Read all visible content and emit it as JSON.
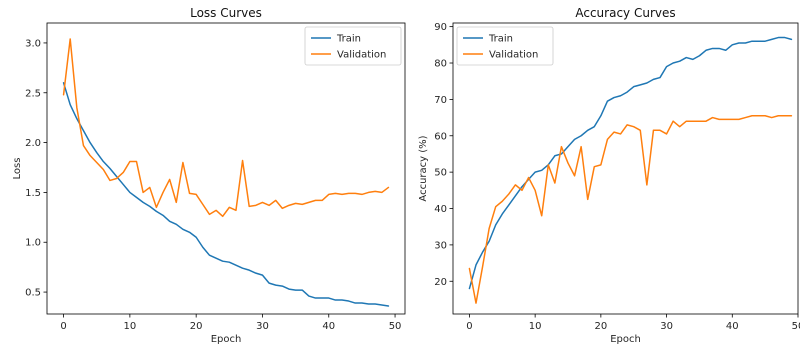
{
  "chart_data": [
    {
      "type": "line",
      "title": "Loss Curves",
      "xlabel": "Epoch",
      "ylabel": "Loss",
      "xlim": [
        -2.5,
        51.5
      ],
      "ylim": [
        0.28,
        3.2
      ],
      "xticks": [
        0,
        10,
        20,
        30,
        40,
        50
      ],
      "yticks": [
        0.5,
        1.0,
        1.5,
        2.0,
        2.5,
        3.0
      ],
      "xtick_labels": [
        "0",
        "10",
        "20",
        "30",
        "40",
        "50"
      ],
      "ytick_labels": [
        "0.5",
        "1.0",
        "1.5",
        "2.0",
        "2.5",
        "3.0"
      ],
      "legend": "upper right",
      "grid": false,
      "x": [
        0,
        1,
        2,
        3,
        4,
        5,
        6,
        7,
        8,
        9,
        10,
        11,
        12,
        13,
        14,
        15,
        16,
        17,
        18,
        19,
        20,
        21,
        22,
        23,
        24,
        25,
        26,
        27,
        28,
        29,
        30,
        31,
        32,
        33,
        34,
        35,
        36,
        37,
        38,
        39,
        40,
        41,
        42,
        43,
        44,
        45,
        46,
        47,
        48,
        49
      ],
      "series": [
        {
          "name": "Train",
          "color": "#1f77b4",
          "values": [
            2.6,
            2.38,
            2.24,
            2.12,
            2.0,
            1.9,
            1.81,
            1.74,
            1.66,
            1.58,
            1.5,
            1.45,
            1.4,
            1.36,
            1.31,
            1.27,
            1.21,
            1.18,
            1.13,
            1.1,
            1.05,
            0.95,
            0.87,
            0.84,
            0.81,
            0.8,
            0.77,
            0.74,
            0.72,
            0.69,
            0.67,
            0.59,
            0.57,
            0.56,
            0.53,
            0.52,
            0.52,
            0.46,
            0.44,
            0.44,
            0.44,
            0.42,
            0.42,
            0.41,
            0.39,
            0.39,
            0.38,
            0.38,
            0.37,
            0.36
          ]
        },
        {
          "name": "Validation",
          "color": "#ff7f0e",
          "values": [
            2.48,
            3.04,
            2.35,
            1.97,
            1.87,
            1.8,
            1.73,
            1.62,
            1.64,
            1.7,
            1.81,
            1.81,
            1.5,
            1.55,
            1.35,
            1.5,
            1.63,
            1.4,
            1.8,
            1.49,
            1.48,
            1.38,
            1.28,
            1.32,
            1.26,
            1.35,
            1.32,
            1.82,
            1.36,
            1.37,
            1.4,
            1.37,
            1.42,
            1.34,
            1.37,
            1.39,
            1.38,
            1.4,
            1.42,
            1.42,
            1.48,
            1.49,
            1.48,
            1.49,
            1.49,
            1.48,
            1.5,
            1.51,
            1.5,
            1.55
          ]
        }
      ]
    },
    {
      "type": "line",
      "title": "Accuracy Curves",
      "xlabel": "Epoch",
      "ylabel": "Accuracy (%)",
      "xlim": [
        -2.5,
        50
      ],
      "ylim": [
        11,
        91
      ],
      "xticks": [
        0,
        10,
        20,
        30,
        40,
        50
      ],
      "yticks": [
        20,
        30,
        40,
        50,
        60,
        70,
        80,
        90
      ],
      "xtick_labels": [
        "0",
        "10",
        "20",
        "30",
        "40",
        "50"
      ],
      "ytick_labels": [
        "20",
        "30",
        "40",
        "50",
        "60",
        "70",
        "80",
        "90"
      ],
      "legend": "upper left",
      "grid": false,
      "x": [
        0,
        1,
        2,
        3,
        4,
        5,
        6,
        7,
        8,
        9,
        10,
        11,
        12,
        13,
        14,
        15,
        16,
        17,
        18,
        19,
        20,
        21,
        22,
        23,
        24,
        25,
        26,
        27,
        28,
        29,
        30,
        31,
        32,
        33,
        34,
        35,
        36,
        37,
        38,
        39,
        40,
        41,
        42,
        43,
        44,
        45,
        46,
        47,
        48,
        49
      ],
      "series": [
        {
          "name": "Train",
          "color": "#1f77b4",
          "values": [
            18.0,
            24.5,
            28.0,
            31.0,
            35.5,
            38.5,
            41.0,
            43.5,
            46.0,
            48.0,
            50.0,
            50.5,
            52.0,
            54.5,
            55.0,
            57.0,
            59.0,
            60.0,
            61.5,
            62.5,
            65.5,
            69.5,
            70.5,
            71.0,
            72.0,
            73.5,
            74.0,
            74.5,
            75.5,
            76.0,
            79.0,
            80.0,
            80.5,
            81.5,
            81.0,
            82.0,
            83.5,
            84.0,
            84.0,
            83.5,
            85.0,
            85.5,
            85.5,
            86.0,
            86.0,
            86.0,
            86.5,
            87.0,
            87.0,
            86.5
          ]
        },
        {
          "name": "Validation",
          "color": "#ff7f0e",
          "values": [
            23.5,
            14.0,
            24.0,
            34.5,
            40.5,
            42.0,
            44.0,
            46.5,
            45.0,
            48.5,
            45.0,
            38.0,
            52.0,
            47.0,
            57.0,
            52.5,
            49.0,
            57.0,
            42.5,
            51.5,
            52.0,
            59.0,
            61.0,
            60.5,
            63.0,
            62.5,
            61.5,
            46.5,
            61.5,
            61.5,
            60.5,
            64.0,
            62.5,
            64.0,
            64.0,
            64.0,
            64.0,
            65.0,
            64.5,
            64.5,
            64.5,
            64.5,
            65.0,
            65.5,
            65.5,
            65.5,
            65.0,
            65.5,
            65.5,
            65.5
          ]
        }
      ]
    }
  ]
}
